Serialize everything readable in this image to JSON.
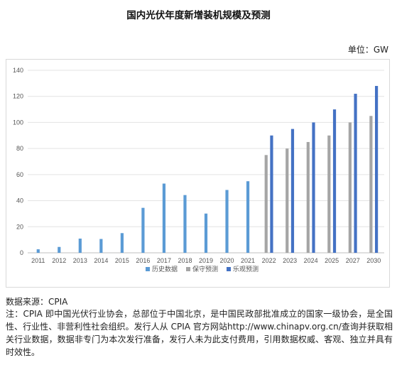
{
  "title": "国内光伏年度新增装机规模及预测",
  "unit_label": "单位：GW",
  "source": "数据来源：CPIA",
  "note": "注：CPIA 即中国光伏行业协会，总部位于中国北京，是中国民政部批准成立的国家一级协会，是全国性、行业性、非营利性社会组织。发行人从 CPIA 官方网站http://www.chinapv.org.cn/查询并获取相关行业数据，数据非专门为本次发行准备，发行人未为此支付费用，引用数据权威、客观、独立并具有时效性。",
  "colors": {
    "history": "#5b9bd5",
    "conservative": "#a5a5a5",
    "optimistic": "#4472c4"
  },
  "chart_data": {
    "type": "bar",
    "categories": [
      "2011",
      "2012",
      "2013",
      "2014",
      "2015",
      "2016",
      "2017",
      "2018",
      "2019",
      "2020",
      "2021",
      "2022",
      "2023",
      "2024",
      "2025",
      "2027",
      "2030"
    ],
    "series": [
      {
        "name": "历史数据",
        "values": [
          2.7,
          4.5,
          10.9,
          10.6,
          15.1,
          34.5,
          53.1,
          44.3,
          30.1,
          48.2,
          54.9,
          null,
          null,
          null,
          null,
          null,
          null
        ]
      },
      {
        "name": "保守预测",
        "values": [
          null,
          null,
          null,
          null,
          null,
          null,
          null,
          null,
          null,
          null,
          null,
          75,
          80,
          85,
          90,
          100,
          105
        ]
      },
      {
        "name": "乐观预测",
        "values": [
          null,
          null,
          null,
          null,
          null,
          null,
          null,
          null,
          null,
          null,
          null,
          90,
          95,
          100,
          110,
          122,
          128
        ]
      }
    ],
    "ylim": [
      0,
      140
    ],
    "yticks": [
      "0",
      "20",
      "40",
      "60",
      "80",
      "100",
      "120",
      "140"
    ],
    "legend_position": "bottom",
    "grid": true
  }
}
